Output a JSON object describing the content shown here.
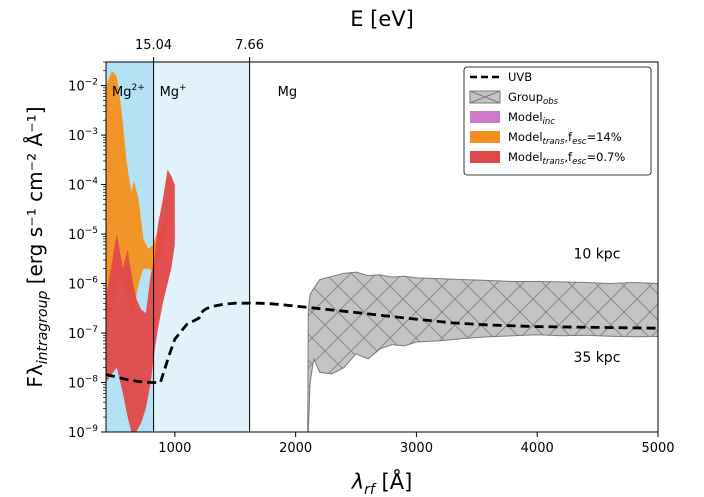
{
  "chart_data": {
    "type": "area",
    "title": "",
    "xlabel_main": "λ",
    "xlabel_sub": "rf",
    "xlabel_unit": " [Å]",
    "ylabel_main": "Fλ",
    "ylabel_sub": "intragroup",
    "ylabel_unit": " [erg s⁻¹ cm⁻² Å⁻¹]",
    "top_axis_label": "E [eV]",
    "xlim": [
      430,
      5000
    ],
    "ylim": [
      1e-09,
      0.03
    ],
    "yscale": "log",
    "x_ticks": [
      1000,
      2000,
      3000,
      4000,
      5000
    ],
    "x_tick_labels": [
      "1000",
      "2000",
      "3000",
      "4000",
      "5000"
    ],
    "y_tick_labels": [
      {
        "exp": -9,
        "text": "10",
        "sup": "−9"
      },
      {
        "exp": -8,
        "text": "10",
        "sup": "−8"
      },
      {
        "exp": -7,
        "text": "10",
        "sup": "−7"
      },
      {
        "exp": -6,
        "text": "10",
        "sup": "−6"
      },
      {
        "exp": -5,
        "text": "10",
        "sup": "−5"
      },
      {
        "exp": -4,
        "text": "10",
        "sup": "−4"
      },
      {
        "exp": -3,
        "text": "10",
        "sup": "−3"
      },
      {
        "exp": -2,
        "text": "10",
        "sup": "−2"
      }
    ],
    "top_ticks": [
      {
        "wavelength": 824,
        "label": "15.04"
      },
      {
        "wavelength": 1619,
        "label": "7.66"
      }
    ],
    "regions": [
      {
        "name": "Mg2+",
        "label": "Mg",
        "sup": "2+",
        "x_from": 430,
        "x_to": 824,
        "color": "#b5e1f5"
      },
      {
        "name": "Mg+",
        "label": "Mg",
        "sup": "+",
        "x_from": 824,
        "x_to": 1619,
        "color": "#e1f2fb"
      },
      {
        "name": "Mg",
        "label": "Mg",
        "sup": "",
        "x_from": 1619,
        "x_to": 5000,
        "color": "#ffffff"
      }
    ],
    "annotations": [
      {
        "text": "10 kpc",
        "x": 4300,
        "y": 3.2e-06
      },
      {
        "text": "35 kpc",
        "x": 4300,
        "y": 2.6e-08
      }
    ],
    "legend": {
      "placement": "top-right",
      "entries": [
        {
          "key": "uvb",
          "label": "UVB",
          "sub": "",
          "tail": "",
          "style": "dashed",
          "color": "#000000"
        },
        {
          "key": "group_obs",
          "label": "Group",
          "sub": "obs",
          "tail": "",
          "style": "hatch",
          "color": "#bdbdbd"
        },
        {
          "key": "model_inc",
          "label": "Model",
          "sub": "inc",
          "tail": "",
          "style": "fill",
          "color": "#cc79c8"
        },
        {
          "key": "model_trans_14",
          "label": "Model",
          "sub": "trans",
          "tail": ",f",
          "sub2": "esc",
          "tail2": "=14%",
          "style": "fill",
          "color": "#f5901e"
        },
        {
          "key": "model_trans_07",
          "label": "Model",
          "sub": "trans",
          "tail": ",f",
          "sub2": "esc",
          "tail2": "=0.7%",
          "style": "fill",
          "color": "#e04848"
        }
      ]
    },
    "series": [
      {
        "name": "UVB",
        "style": "dashed",
        "x": [
          430,
          600,
          700,
          800,
          850,
          880,
          920,
          960,
          1000,
          1100,
          1200,
          1220,
          1250,
          1300,
          1400,
          1500,
          1600,
          1700,
          1800,
          1900,
          2000,
          2200,
          2500,
          2800,
          3000,
          3300,
          3600,
          4000,
          4500,
          5000
        ],
        "y": [
          1.45e-08,
          1.15e-08,
          1.05e-08,
          1e-08,
          1e-08,
          1e-08,
          2e-08,
          4e-08,
          7.5e-08,
          1.5e-07,
          2e-07,
          2.6e-07,
          3e-07,
          3.4e-07,
          3.8e-07,
          4e-07,
          4e-07,
          4e-07,
          3.9e-07,
          3.7e-07,
          3.5e-07,
          3.1e-07,
          2.6e-07,
          2.15e-07,
          1.9e-07,
          1.6e-07,
          1.45e-07,
          1.35e-07,
          1.3e-07,
          1.25e-07
        ]
      },
      {
        "name": "Group_obs",
        "style": "band",
        "x": [
          2100,
          2105,
          2120,
          2150,
          2200,
          2300,
          2400,
          2500,
          2600,
          2700,
          2800,
          2900,
          3000,
          3200,
          3400,
          3600,
          3800,
          4000,
          4200,
          4400,
          4600,
          4800,
          5000
        ],
        "y_low": [
          1e-09,
          1e-09,
          1e-08,
          3e-08,
          1.6e-08,
          1.5e-08,
          2e-08,
          3.8e-08,
          3e-08,
          4.8e-08,
          5.8e-08,
          5.5e-08,
          6.6e-08,
          7e-08,
          7.8e-08,
          8.4e-08,
          8.8e-08,
          9.2e-08,
          8.8e-08,
          9e-08,
          8.6e-08,
          8.4e-08,
          8.5e-08
        ],
        "y_high": [
          1e-09,
          3e-07,
          6e-07,
          8e-07,
          1.2e-06,
          1.4e-06,
          1.6e-06,
          1.7e-06,
          1.45e-06,
          1.5e-06,
          1.35e-06,
          1.4e-06,
          1.3e-06,
          1.25e-06,
          1.2e-06,
          1.15e-06,
          1.1e-06,
          1.1e-06,
          1.08e-06,
          1.05e-06,
          1e-06,
          1.05e-06,
          1e-06
        ]
      },
      {
        "name": "Model_trans f_esc=14%",
        "style": "band",
        "x": [
          430,
          480,
          520,
          560,
          600,
          640,
          660,
          700,
          740,
          780,
          820,
          860,
          900,
          940
        ],
        "y_low": [
          1.2e-07,
          3e-07,
          1e-06,
          1.5e-06,
          6e-07,
          2e-07,
          3e-07,
          1e-06,
          2e-06,
          2e-06,
          1.8e-06,
          2.5e-06,
          4e-06,
          2e-05
        ],
        "y_high": [
          0.01,
          0.02,
          0.015,
          0.003,
          0.0003,
          7e-05,
          0.00012,
          5e-05,
          8e-06,
          5e-06,
          6e-06,
          1.2e-05,
          1.5e-05,
          5e-05
        ]
      },
      {
        "name": "Model_trans f_esc=0.7%",
        "style": "band",
        "x": [
          430,
          470,
          520,
          570,
          610,
          640,
          680,
          720,
          760,
          800,
          830,
          860,
          900,
          940,
          970,
          1000
        ],
        "y_low": [
          1e-08,
          1.4e-08,
          2e-08,
          6e-09,
          2e-09,
          1e-09,
          1e-09,
          1.5e-09,
          3e-09,
          1e-08,
          4e-08,
          1.2e-07,
          4e-07,
          1e-06,
          2e-06,
          6e-06
        ],
        "y_high": [
          5e-07,
          2e-06,
          1e-05,
          2e-06,
          5e-06,
          1.5e-06,
          5e-07,
          3e-07,
          2.5e-07,
          1.5e-06,
          3e-06,
          1.5e-05,
          5e-05,
          0.0002,
          0.00015,
          0.0001
        ]
      }
    ]
  }
}
